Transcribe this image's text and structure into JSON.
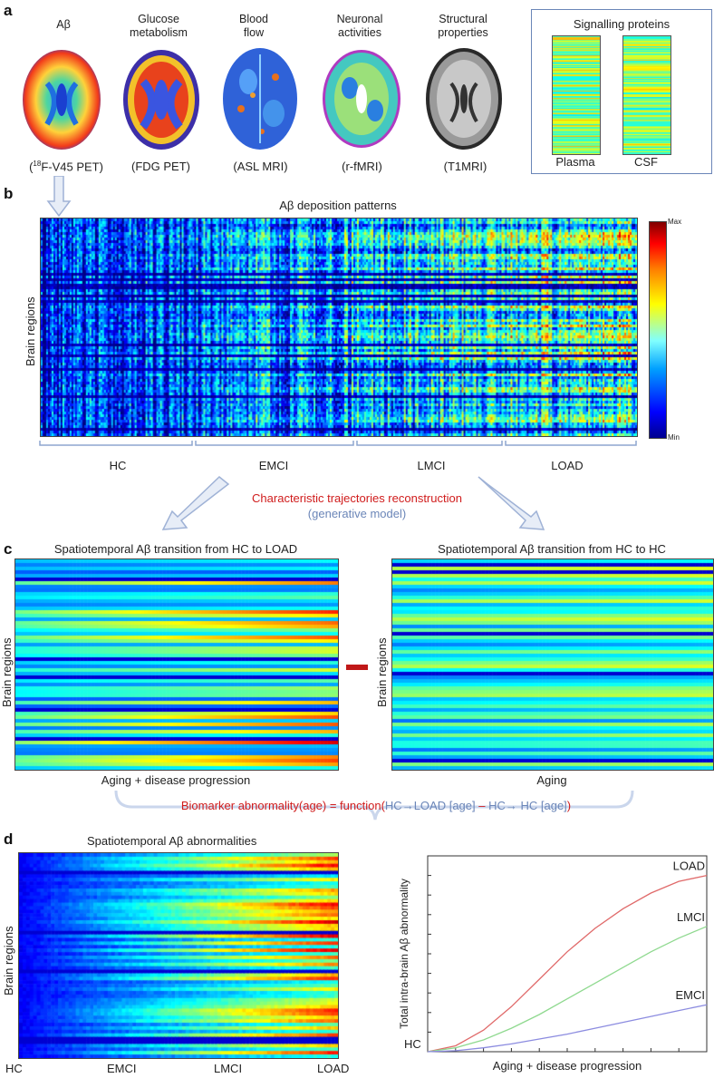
{
  "panel_a": {
    "label": "a",
    "modalities": [
      {
        "title": "Aβ",
        "modality": "(18F-V45 PET)",
        "mod_prefix": "(",
        "mod_sup": "18",
        "mod_rest": "F-V45 PET)"
      },
      {
        "title": "Glucose\nmetabolism",
        "modality": "(FDG PET)"
      },
      {
        "title": "Blood\nflow",
        "modality": "(ASL MRI)"
      },
      {
        "title": "Neuronal\nactivities",
        "modality": "(r-fMRI)"
      },
      {
        "title": "Structural\nproperties",
        "modality": "(T1MRI)"
      }
    ],
    "signalling": {
      "title": "Signalling proteins",
      "left": "Plasma",
      "right": "CSF"
    }
  },
  "panel_b": {
    "label": "b",
    "title": "Aβ deposition patterns",
    "ylabel": "Brain regions",
    "colorbar_max": "Max",
    "colorbar_min": "Min",
    "groups": [
      "HC",
      "EMCI",
      "LMCI",
      "LOAD"
    ],
    "arrow_title": "Characteristic trajectories reconstruction",
    "arrow_subtitle": "(generative model)"
  },
  "panel_c": {
    "label": "c",
    "left_title": "Spatiotemporal Aβ transition from HC to LOAD",
    "right_title": "Spatiotemporal Aβ transition from HC to HC",
    "ylabel": "Brain regions",
    "left_xlabel": "Aging + disease progression",
    "right_xlabel": "Aging",
    "formula": {
      "lhs": "Biomarker abnormality(age) = function(",
      "a": "HC→LOAD [age]",
      "minus": " – ",
      "b": "HC→ HC [age]",
      "rhs": ")"
    }
  },
  "panel_d": {
    "label": "d",
    "heat_title": "Spatiotemporal Aβ abnormalities",
    "ylabel": "Brain regions",
    "xticks": [
      "HC",
      "EMCI",
      "LMCI",
      "LOAD"
    ]
  },
  "chart_data": {
    "type": "line",
    "title": "",
    "xlabel": "Aging + disease progression",
    "ylabel": "Total intra-brain Aβ abnormality",
    "start_label": "HC",
    "xlim": [
      0,
      1
    ],
    "ylim": [
      0,
      1
    ],
    "x": [
      0,
      0.1,
      0.2,
      0.3,
      0.4,
      0.5,
      0.6,
      0.7,
      0.8,
      0.9,
      1.0
    ],
    "series": [
      {
        "name": "LOAD",
        "color": "#e06a6a",
        "values": [
          0,
          0.03,
          0.11,
          0.23,
          0.37,
          0.51,
          0.63,
          0.73,
          0.81,
          0.87,
          0.9
        ]
      },
      {
        "name": "LMCI",
        "color": "#8fd98f",
        "values": [
          0,
          0.02,
          0.06,
          0.12,
          0.19,
          0.27,
          0.35,
          0.43,
          0.51,
          0.58,
          0.64
        ]
      },
      {
        "name": "EMCI",
        "color": "#8c8ce0",
        "values": [
          0,
          0.005,
          0.02,
          0.04,
          0.065,
          0.09,
          0.12,
          0.15,
          0.18,
          0.21,
          0.24
        ]
      }
    ]
  },
  "colors": {
    "accent_red": "#d01c1c",
    "accent_blue": "#6b86b8",
    "arrow": "#b9c7e2"
  }
}
